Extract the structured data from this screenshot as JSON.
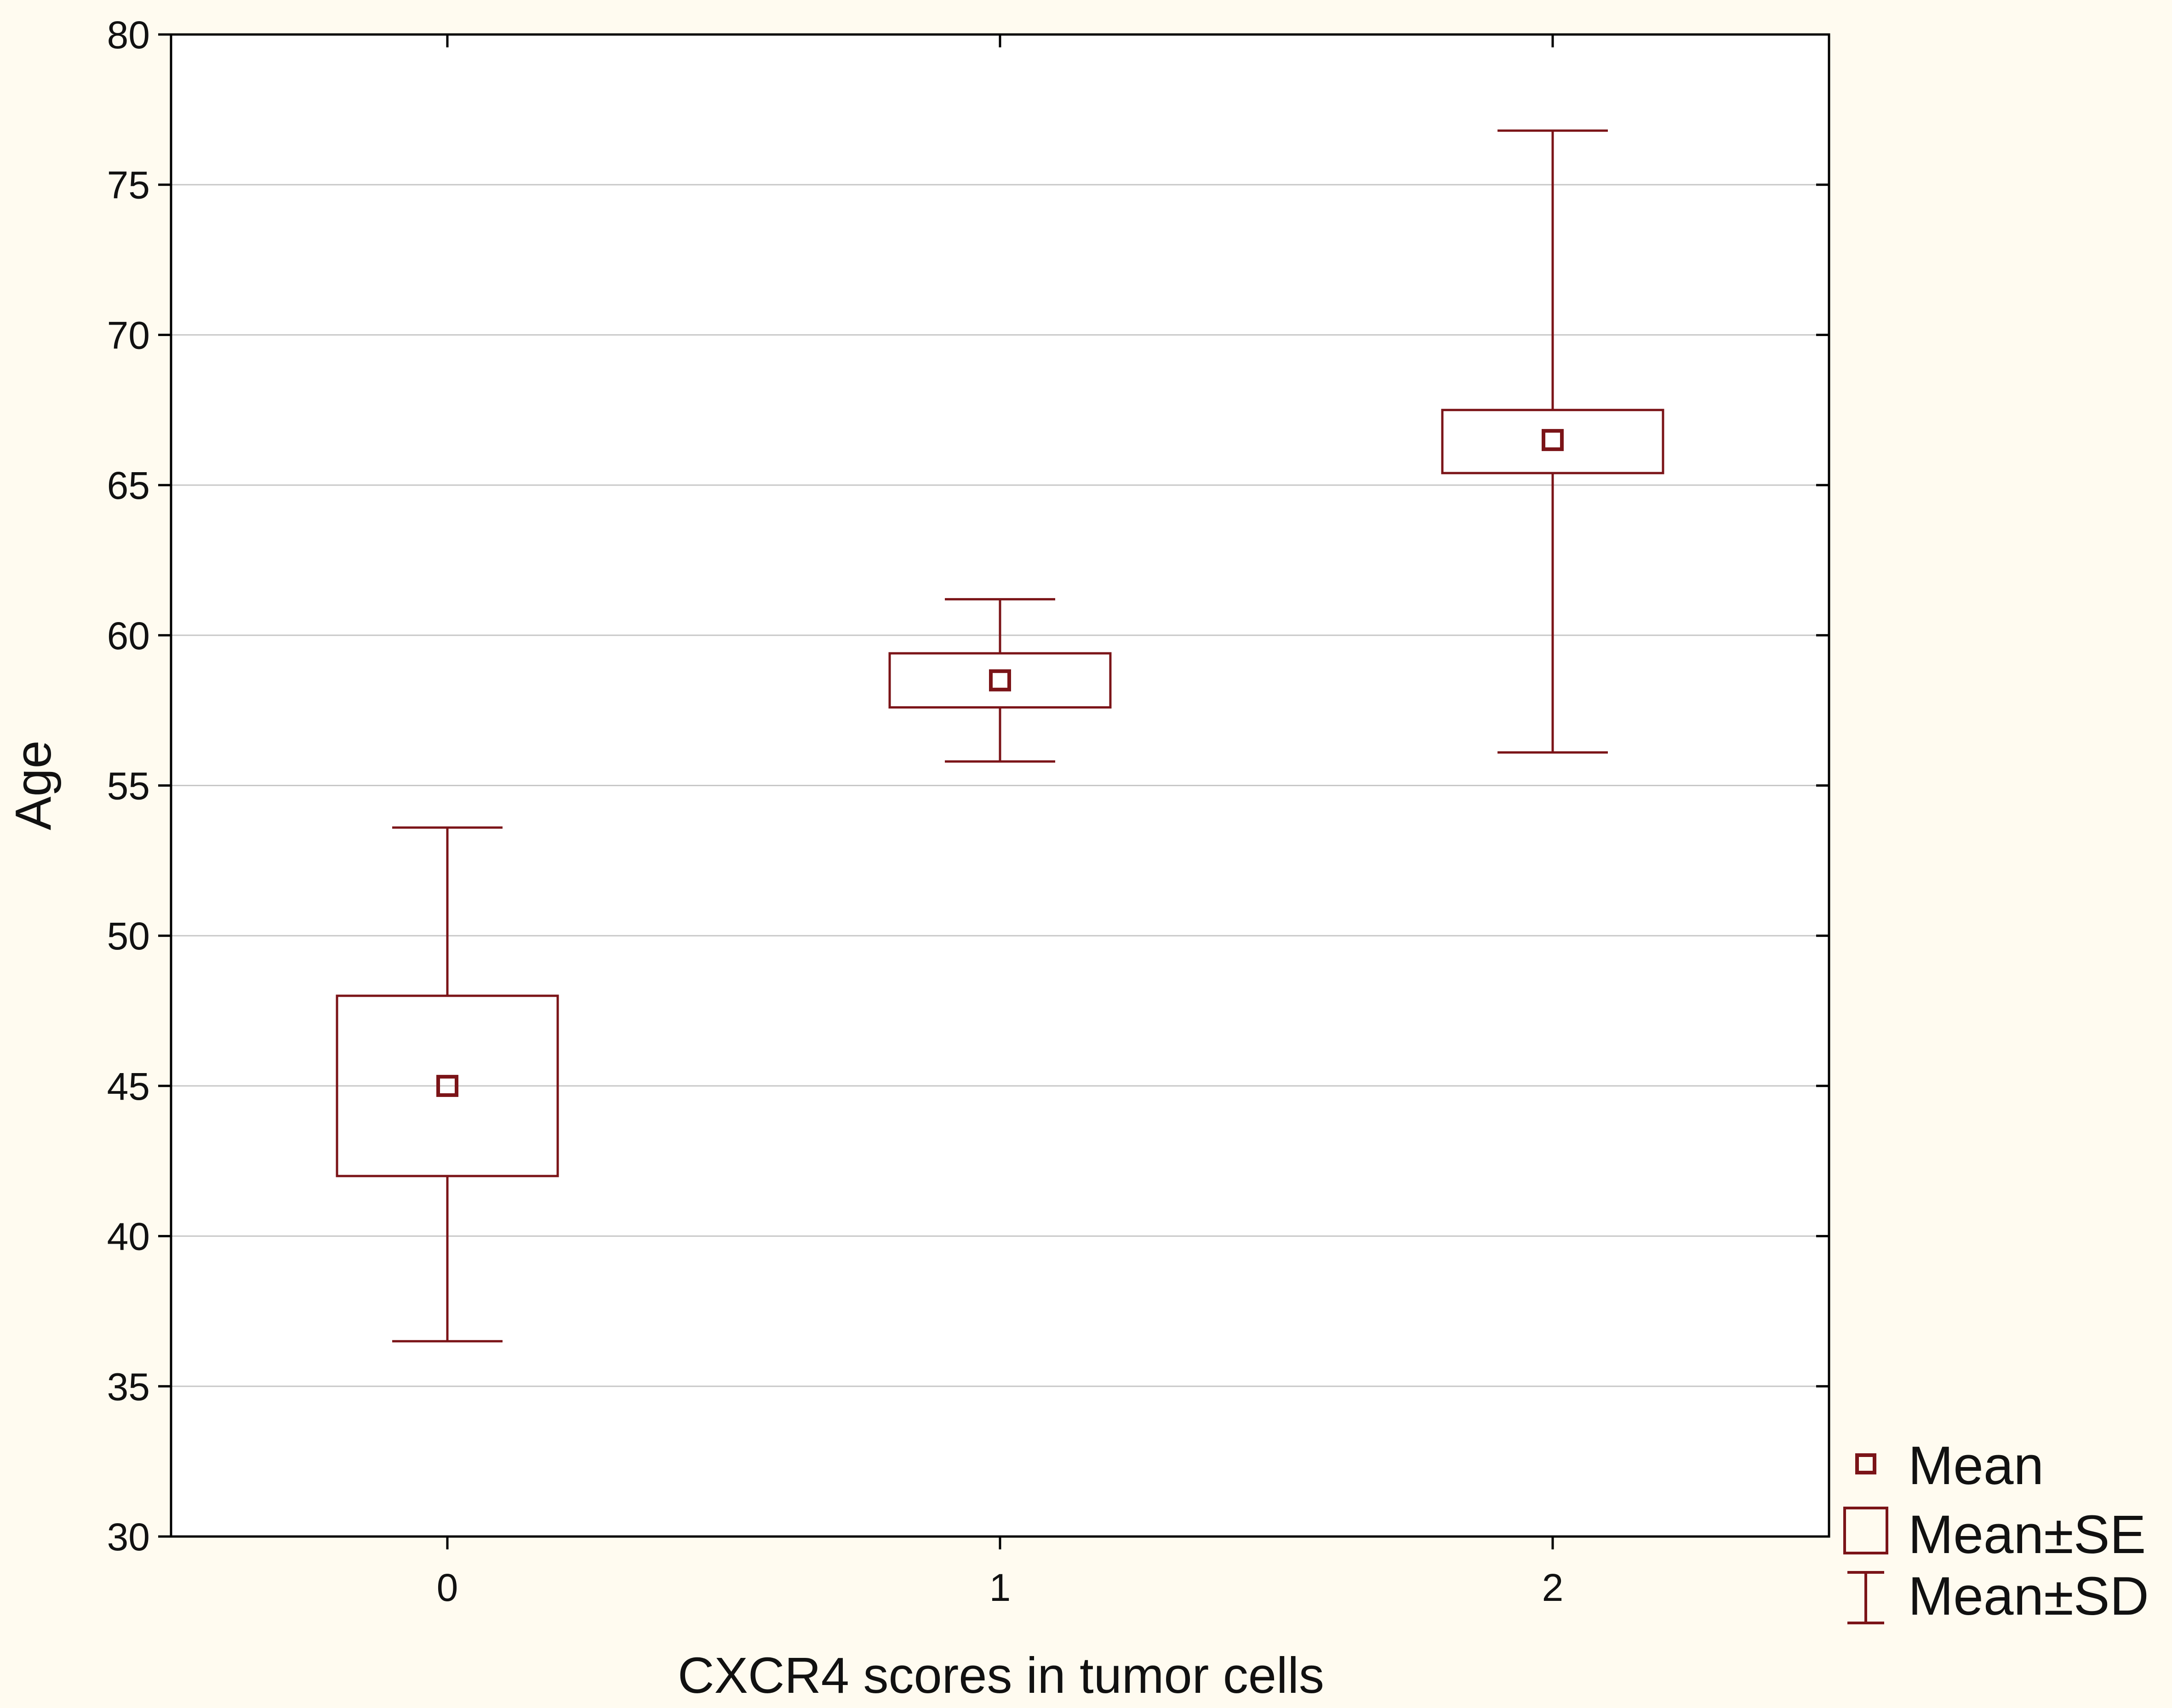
{
  "chart_data": {
    "type": "box",
    "xlabel": "CXCR4 scores in tumor cells",
    "ylabel": "Age",
    "ylim": [
      30,
      80
    ],
    "yticks": [
      30,
      35,
      40,
      45,
      50,
      55,
      60,
      65,
      70,
      75,
      80
    ],
    "categories": [
      "0",
      "1",
      "2"
    ],
    "groups": [
      {
        "category": "0",
        "mean": 45.0,
        "se_low": 42.0,
        "se_high": 48.0,
        "sd_low": 36.5,
        "sd_high": 53.6
      },
      {
        "category": "1",
        "mean": 58.5,
        "se_low": 57.6,
        "se_high": 59.4,
        "sd_low": 55.8,
        "sd_high": 61.2
      },
      {
        "category": "2",
        "mean": 66.5,
        "se_low": 65.4,
        "se_high": 67.5,
        "sd_low": 56.1,
        "sd_high": 76.8
      }
    ],
    "grid": true,
    "legend": {
      "placement": "bottom-right, outside plot",
      "entries": [
        "Mean",
        "Mean±SE",
        "Mean±SD"
      ]
    },
    "colors": {
      "series": "#7b1418",
      "background": "#fffbf0",
      "plot_background": "#ffffff",
      "grid": "#c8c8c8",
      "axis": "#000000"
    }
  }
}
